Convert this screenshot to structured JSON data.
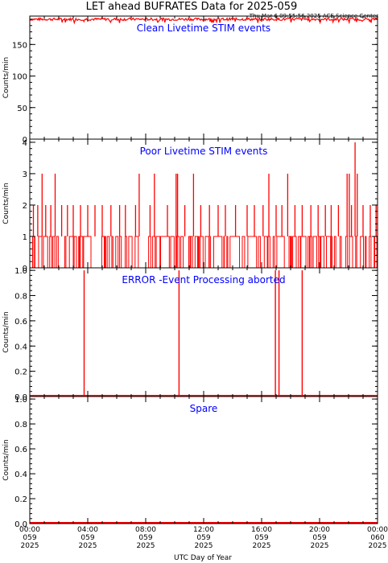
{
  "header": {
    "title": "LET ahead BUFRATES Data for 2025-059",
    "timestamp": "Thu Mar  6 09:55:56 2025 ACE Science Center"
  },
  "x_axis": {
    "label": "UTC Day of Year",
    "range_hours": [
      0,
      24
    ],
    "ticks": [
      {
        "hour": 0,
        "time": "00:00",
        "doy": "059",
        "year": "2025"
      },
      {
        "hour": 4,
        "time": "04:00",
        "doy": "059",
        "year": "2025"
      },
      {
        "hour": 8,
        "time": "08:00",
        "doy": "059",
        "year": "2025"
      },
      {
        "hour": 12,
        "time": "12:00",
        "doy": "059",
        "year": "2025"
      },
      {
        "hour": 16,
        "time": "16:00",
        "doy": "059",
        "year": "2025"
      },
      {
        "hour": 20,
        "time": "20:00",
        "doy": "059",
        "year": "2025"
      },
      {
        "hour": 24,
        "time": "00:00",
        "doy": "060",
        "year": "2025"
      }
    ]
  },
  "colors": {
    "data": "#ff0000",
    "panel_title": "#0000ff",
    "axes": "#000000"
  },
  "chart_data": [
    {
      "type": "line",
      "title": "Clean Livetime STIM events",
      "ylabel": "Counts/min",
      "ylim": [
        0,
        195
      ],
      "yticks": [
        0,
        50,
        100,
        150
      ],
      "series": [
        {
          "kind": "noisy_band",
          "mean": 190,
          "min": 184,
          "max": 193
        }
      ]
    },
    {
      "type": "line",
      "title": "Poor Livetime STIM events",
      "ylabel": "Counts/min",
      "ylim": [
        0,
        4.1
      ],
      "yticks": [
        0,
        1,
        2,
        3,
        4
      ],
      "series": [
        {
          "kind": "spikes",
          "baseline": "mostly 0/1",
          "points": [
            {
              "hour": 0.25,
              "value": 2
            },
            {
              "hour": 0.55,
              "value": 2
            },
            {
              "hour": 0.85,
              "value": 3
            },
            {
              "hour": 1.1,
              "value": 2
            },
            {
              "hour": 1.45,
              "value": 2
            },
            {
              "hour": 1.75,
              "value": 3
            },
            {
              "hour": 2.2,
              "value": 2
            },
            {
              "hour": 2.6,
              "value": 2
            },
            {
              "hour": 3.0,
              "value": 2
            },
            {
              "hour": 3.5,
              "value": 2
            },
            {
              "hour": 4.0,
              "value": 2
            },
            {
              "hour": 4.5,
              "value": 2
            },
            {
              "hour": 5.0,
              "value": 2
            },
            {
              "hour": 5.6,
              "value": 2
            },
            {
              "hour": 6.2,
              "value": 2
            },
            {
              "hour": 6.6,
              "value": 2
            },
            {
              "hour": 7.3,
              "value": 2
            },
            {
              "hour": 7.55,
              "value": 3
            },
            {
              "hour": 8.3,
              "value": 2
            },
            {
              "hour": 8.6,
              "value": 3
            },
            {
              "hour": 9.5,
              "value": 2
            },
            {
              "hour": 10.1,
              "value": 3
            },
            {
              "hour": 10.2,
              "value": 3
            },
            {
              "hour": 10.7,
              "value": 2
            },
            {
              "hour": 11.3,
              "value": 3
            },
            {
              "hour": 11.8,
              "value": 2
            },
            {
              "hour": 12.4,
              "value": 2
            },
            {
              "hour": 13.0,
              "value": 2
            },
            {
              "hour": 13.5,
              "value": 2
            },
            {
              "hour": 14.2,
              "value": 2
            },
            {
              "hour": 15.0,
              "value": 2
            },
            {
              "hour": 15.5,
              "value": 2
            },
            {
              "hour": 16.1,
              "value": 2
            },
            {
              "hour": 16.5,
              "value": 3
            },
            {
              "hour": 17.0,
              "value": 2
            },
            {
              "hour": 17.4,
              "value": 2
            },
            {
              "hour": 17.8,
              "value": 3
            },
            {
              "hour": 18.3,
              "value": 2
            },
            {
              "hour": 18.8,
              "value": 2
            },
            {
              "hour": 19.4,
              "value": 2
            },
            {
              "hour": 19.9,
              "value": 2
            },
            {
              "hour": 20.4,
              "value": 2
            },
            {
              "hour": 20.8,
              "value": 2
            },
            {
              "hour": 21.3,
              "value": 2
            },
            {
              "hour": 21.9,
              "value": 3
            },
            {
              "hour": 22.05,
              "value": 3
            },
            {
              "hour": 22.2,
              "value": 2
            },
            {
              "hour": 22.45,
              "value": 4
            },
            {
              "hour": 22.6,
              "value": 3
            },
            {
              "hour": 23.0,
              "value": 2
            },
            {
              "hour": 23.5,
              "value": 2
            },
            {
              "hour": 23.9,
              "value": 2
            }
          ]
        }
      ]
    },
    {
      "type": "line",
      "title": "ERROR -Event Processing aborted",
      "ylabel": "Counts/min",
      "ylim": [
        0,
        1.02
      ],
      "yticks": [
        0.0,
        0.2,
        0.4,
        0.6,
        0.8,
        1.0
      ],
      "series": [
        {
          "kind": "spikes",
          "baseline": 0,
          "points": [
            {
              "hour": 3.75,
              "value": 1
            },
            {
              "hour": 10.3,
              "value": 1
            },
            {
              "hour": 16.95,
              "value": 1
            },
            {
              "hour": 17.2,
              "value": 1
            },
            {
              "hour": 18.8,
              "value": 1
            }
          ]
        }
      ]
    },
    {
      "type": "line",
      "title": "Spare",
      "ylabel": "Counts/min",
      "ylim": [
        0,
        1.02
      ],
      "yticks": [
        0.0,
        0.2,
        0.4,
        0.6,
        0.8,
        1.0
      ],
      "series": [
        {
          "kind": "flat",
          "value": 0
        }
      ]
    }
  ]
}
